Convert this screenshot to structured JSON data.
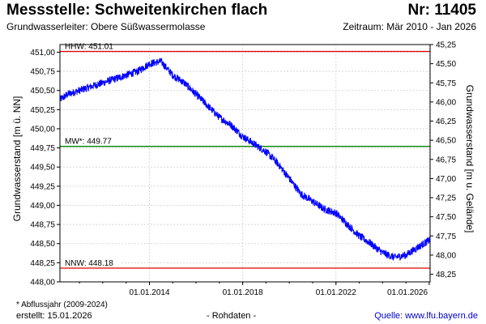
{
  "header": {
    "title": "Messstelle: Schweitenkirchen flach",
    "nr": "Nr: 11405",
    "aquifer": "Grundwasserleiter:  Obere Süßwassermolasse",
    "period": "Zeitraum: Mär 2010 - Jan 2026"
  },
  "footer": {
    "footnote": "* Abflussjahr (2009-2024)",
    "created": "erstellt:  15.01.2026",
    "rawdata": "- Rohdaten -",
    "source": "Quelle:  www.lfu.bayern.de"
  },
  "chart_data": {
    "type": "line",
    "xlabel": "",
    "ylabel": "Grundwasserstand [m ü. NN]",
    "ylabel_right": "Grundwasserstand [m u. Gelände]",
    "xlim": [
      "2010-03-01",
      "2026-01-15"
    ],
    "ylim": [
      448.0,
      451.1
    ],
    "ylim_right": [
      48.35,
      45.25
    ],
    "x_ticks": [
      "01.01.2014",
      "01.01.2018",
      "01.01.2022",
      "01.01.2026"
    ],
    "y_ticks": [
      "448,00",
      "448,25",
      "448,50",
      "448,75",
      "449,00",
      "449,25",
      "449,50",
      "449,75",
      "450,00",
      "450,25",
      "450,50",
      "450,75",
      "451,00"
    ],
    "y_ticks_right": [
      "45,25",
      "45,50",
      "45,75",
      "46,00",
      "46,25",
      "46,50",
      "46,75",
      "47,00",
      "47,25",
      "47,50",
      "47,75",
      "48,00",
      "48,25"
    ],
    "grid": true,
    "reference_lines": [
      {
        "label": "HHW: 451.01",
        "value": 451.01,
        "color": "#e00000"
      },
      {
        "label": "MW*: 449.77",
        "value": 449.77,
        "color": "#008800"
      },
      {
        "label": "NNW: 448.18",
        "value": 448.18,
        "color": "#e00000"
      }
    ],
    "series": [
      {
        "color": "#0000ff",
        "x": [
          "2010-03-01",
          "2010-07-01",
          "2011-01-01",
          "2011-07-01",
          "2012-01-01",
          "2012-07-01",
          "2013-01-01",
          "2013-07-01",
          "2014-01-01",
          "2014-07-01",
          "2015-01-01",
          "2015-07-01",
          "2016-01-01",
          "2016-07-01",
          "2017-01-01",
          "2017-07-01",
          "2018-01-01",
          "2018-07-01",
          "2019-01-01",
          "2019-07-01",
          "2020-01-01",
          "2020-07-01",
          "2021-01-01",
          "2021-07-01",
          "2022-01-01",
          "2022-07-01",
          "2023-01-01",
          "2023-07-01",
          "2024-01-01",
          "2024-07-01",
          "2025-01-01",
          "2025-07-01",
          "2026-01-15"
        ],
        "y": [
          450.38,
          450.45,
          450.5,
          450.55,
          450.6,
          450.65,
          450.7,
          450.75,
          450.85,
          450.88,
          450.7,
          450.6,
          450.45,
          450.3,
          450.15,
          450.05,
          449.9,
          449.8,
          449.7,
          449.55,
          449.35,
          449.15,
          449.05,
          448.95,
          448.9,
          448.75,
          448.6,
          448.5,
          448.38,
          448.32,
          448.35,
          448.45,
          448.55
        ],
        "noise": 0.05
      }
    ]
  }
}
